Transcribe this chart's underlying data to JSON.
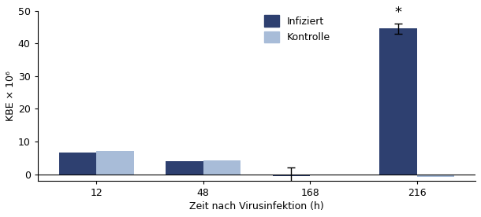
{
  "time_points": [
    "12",
    "48",
    "168",
    "216"
  ],
  "infiziert_values": [
    6.5,
    4.0,
    -0.5,
    44.5
  ],
  "kontrolle_values": [
    7.0,
    4.2,
    -0.2,
    -0.8
  ],
  "infiziert_errors": [
    0.0,
    0.0,
    2.5,
    1.5
  ],
  "kontrolle_errors": [
    0.0,
    0.0,
    0.0,
    0.0
  ],
  "color_infiziert": "#2e4070",
  "color_kontrolle": "#a8bcd8",
  "ylabel": "KBE × 10⁶",
  "xlabel": "Zeit nach Virusinfektion (h)",
  "ylim": [
    -2,
    50
  ],
  "yticks": [
    0,
    10,
    20,
    30,
    40,
    50
  ],
  "legend_infiziert": "Infiziert",
  "legend_kontrolle": "Kontrolle",
  "significance_label": "*",
  "significance_bar_index": 3,
  "bar_width": 0.35,
  "group_positions": [
    0,
    1,
    2,
    3
  ]
}
